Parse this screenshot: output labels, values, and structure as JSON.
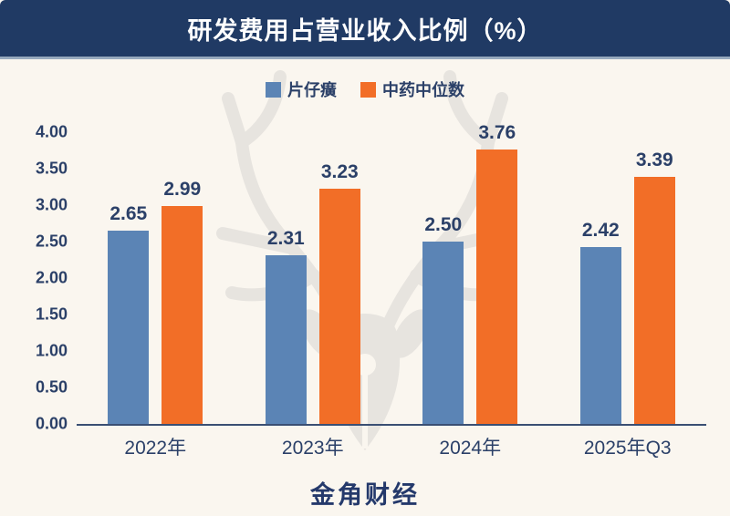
{
  "header": {
    "title": "研发费用占营业收入比例（%）"
  },
  "footer": {
    "brand": "金角财经"
  },
  "colors": {
    "header_bg": "#203a64",
    "background": "#faf6ef",
    "series_1": "#5b84b5",
    "series_2": "#f26e27",
    "text": "#2b4068",
    "axis_line": "#3a5073",
    "watermark": "#e7e4df"
  },
  "chart_data": {
    "type": "bar",
    "title": "研发费用占营业收入比例（%）",
    "categories": [
      "2022年",
      "2023年",
      "2024年",
      "2025年Q3"
    ],
    "series": [
      {
        "name": "片仔癀",
        "color": "#5b84b5",
        "values": [
          2.65,
          2.31,
          2.5,
          2.42
        ]
      },
      {
        "name": "中药中位数",
        "color": "#f26e27",
        "values": [
          2.99,
          3.23,
          3.76,
          3.39
        ]
      }
    ],
    "ylim": [
      0,
      4
    ],
    "yticks": [
      "4.00",
      "3.50",
      "3.00",
      "2.50",
      "2.00",
      "1.50",
      "1.00",
      "0.50",
      "0.00"
    ],
    "grid": false,
    "legend_position": "top",
    "value_labels": true
  }
}
